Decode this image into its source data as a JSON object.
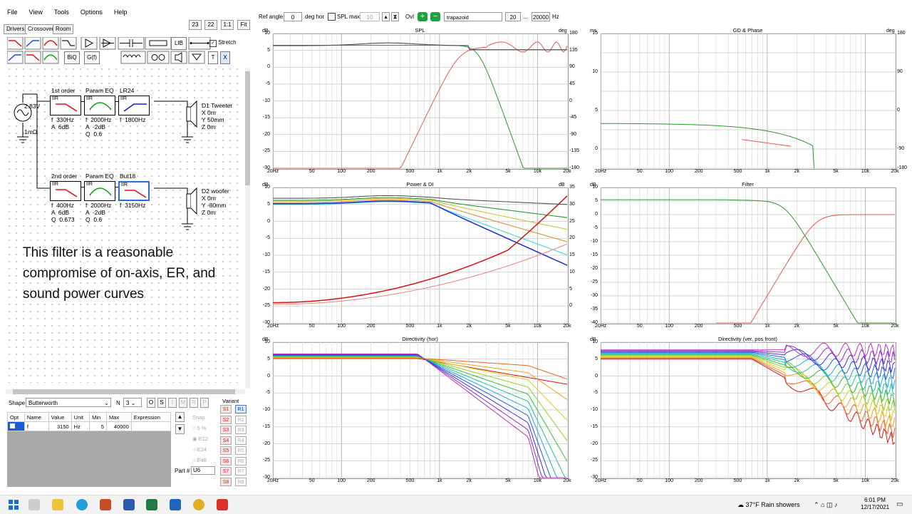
{
  "menu": [
    "File",
    "View",
    "Tools",
    "Options",
    "Help"
  ],
  "tabs": [
    "Drivers",
    "Crossover",
    "Room"
  ],
  "zoom_buttons": [
    "23",
    "22",
    "1:1",
    "Fit"
  ],
  "toolbar": {
    "lib": "LIB",
    "biq": "BiQ",
    "gf": "G(f)",
    "stretch": "Stretch",
    "t": "T",
    "x": "X"
  },
  "top_controls": {
    "ref_angle_label": "Ref angle",
    "ref_angle": "0",
    "deg_hor": "deg hor",
    "spl_max_label": "SPL max",
    "spl_max": "10",
    "ovl": "Ovl",
    "curve_name": "trapazoid",
    "f_low": "20",
    "dots": "...",
    "f_high": "20000",
    "hz": "Hz"
  },
  "schematic": {
    "source_voltage": "2.83V",
    "source_r": "1mΩ",
    "tweeter_blocks": [
      {
        "title": "1st order",
        "tag": "IIR",
        "params": "f  330Hz\nA  6dB",
        "color": "#e01010"
      },
      {
        "title": "Param EQ",
        "tag": "IIR",
        "params": "f  2000Hz\nA  -2dB\nQ  0.6",
        "color": "#12a012"
      },
      {
        "title": "LR24",
        "tag": "IIR",
        "params": "f  1800Hz",
        "color": "#1020e0"
      }
    ],
    "woofer_blocks": [
      {
        "title": "2nd order",
        "tag": "IIR",
        "params": "f  400Hz\nA  6dB\nQ  0.673",
        "color": "#e01010"
      },
      {
        "title": "Param EQ",
        "tag": "IIR",
        "params": "f  2000Hz\nA  -2dB\nQ  0.6",
        "color": "#12a012"
      },
      {
        "title": "But18",
        "tag": "IIR",
        "params": "f  3150Hz",
        "color": "#e01010"
      }
    ],
    "tweeter": "D1 Tweeter\nX 0m\nY 50mm\nZ 0m",
    "woofer": "D2 woofer\nX 0m\nY -80mm\nZ 0m"
  },
  "note": "This filter is a reasonable compromise of on-axis, ER, and sound power curves",
  "shape": {
    "label": "Shape",
    "value": "Butterworth",
    "n_label": "N",
    "n_value": "3",
    "buttons": [
      "O",
      "S",
      "I",
      "M",
      "R",
      "P"
    ]
  },
  "param_table": {
    "headers": [
      "Opt",
      "Name",
      "Value",
      "Unit",
      "Min",
      "Max",
      "Expression"
    ],
    "row": [
      "",
      "f",
      "3150",
      "Hz",
      "5",
      "40000",
      ""
    ]
  },
  "snap": {
    "label": "Snap",
    "options": [
      "5 %",
      "E12",
      "E24",
      "E48"
    ]
  },
  "part": {
    "label": "Part #",
    "value": "U6"
  },
  "variant": {
    "label": "Variant",
    "s": [
      "S1",
      "S2",
      "S3",
      "S4",
      "S5",
      "S6",
      "S7",
      "S8"
    ],
    "r": [
      "R1",
      "R2",
      "R3",
      "R4",
      "R5",
      "R6",
      "R7",
      "R8"
    ]
  },
  "charts": [
    {
      "title": "SPL",
      "ylabel_left": "dB",
      "ylabel_right": "deg",
      "yl": [
        "10",
        "5",
        "0",
        "-5",
        "-10",
        "-15",
        "-20",
        "-25",
        "-30"
      ],
      "yr": [
        "180",
        "135",
        "90",
        "45",
        "0",
        "-45",
        "-90",
        "-135",
        "-180"
      ]
    },
    {
      "title": "GD & Phase",
      "ylabel_left": "ms",
      "ylabel_right": "deg",
      "yl": [
        "15",
        "",
        "10",
        "",
        "5",
        "",
        "0",
        ""
      ],
      "yr": [
        "180",
        "",
        "90",
        "",
        "0",
        "",
        "-90",
        "-180"
      ]
    },
    {
      "title": "Power & DI",
      "ylabel_left": "dB",
      "ylabel_right": "dB",
      "yl": [
        "10",
        "5",
        "0",
        "-5",
        "-10",
        "-15",
        "-20",
        "-25",
        "-30"
      ],
      "yr": [
        "35",
        "30",
        "25",
        "20",
        "15",
        "10",
        "5",
        "0",
        ""
      ]
    },
    {
      "title": "Filter",
      "ylabel_left": "dB",
      "ylabel_right": "",
      "yl": [
        "10",
        "5",
        "0",
        "-5",
        "-10",
        "-15",
        "-20",
        "-25",
        "-30",
        "-35",
        "-40"
      ],
      "yr": []
    },
    {
      "title": "Directivity (hor)",
      "ylabel_left": "dB",
      "ylabel_right": "",
      "yl": [
        "10",
        "5",
        "0",
        "-5",
        "-10",
        "-15",
        "-20",
        "-25",
        "-30"
      ],
      "yr": []
    },
    {
      "title": "Directivity (ver, pos front)",
      "ylabel_left": "dB",
      "ylabel_right": "",
      "yl": [
        "10",
        "5",
        "0",
        "-5",
        "-10",
        "-15",
        "-20",
        "-25",
        "-30"
      ],
      "yr": []
    }
  ],
  "x_ticks": [
    "20Hz",
    "50",
    "100",
    "200",
    "500",
    "1k",
    "2k",
    "5k",
    "10k",
    "20k"
  ],
  "taskbar": {
    "weather": "37°F  Rain showers",
    "time": "6:01 PM",
    "date": "12/17/2021"
  }
}
